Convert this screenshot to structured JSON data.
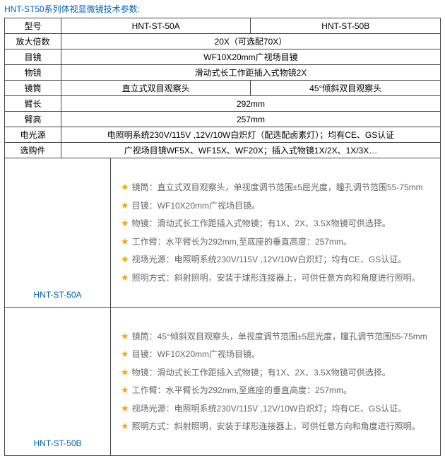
{
  "title": "HNT-ST50系列体视显微镜技术参数:",
  "colors": {
    "link": "#0060bf",
    "star": "#f7a600",
    "text_muted": "#666666",
    "border": "#444444",
    "bg": "#ffffff"
  },
  "spec": {
    "rows": [
      {
        "label": "型号",
        "cells": [
          "HNT-ST-50A",
          "HNT-ST-50B"
        ],
        "split": true
      },
      {
        "label": "放大倍数",
        "cells": [
          "20X（可选配70X）"
        ],
        "split": false
      },
      {
        "label": "目镜",
        "cells": [
          "WF10X20mm广视场目镜"
        ],
        "split": false
      },
      {
        "label": "物镜",
        "cells": [
          "滑动式长工作距插入式物镜2X"
        ],
        "split": false
      },
      {
        "label": "镜筒",
        "cells": [
          "直立式双目观察头",
          "45°倾斜双目观察头"
        ],
        "split": true
      },
      {
        "label": "臂长",
        "cells": [
          "292mm"
        ],
        "split": false
      },
      {
        "label": "臂高",
        "cells": [
          "257mm"
        ],
        "split": false
      },
      {
        "label": "电光源",
        "cells": [
          "电照明系统230V/115V ,12V/10W白炽灯（配选配卤素灯）；均有CE、GS认证"
        ],
        "split": false
      },
      {
        "label": "选购件",
        "cells": [
          "广视场目镜WF5X、WF15X、WF20X；插入式物镜1X/2X、1X/3X…"
        ],
        "split": false
      }
    ]
  },
  "models": [
    {
      "name": "HNT-ST-50A",
      "features": [
        {
          "label": "镜筒：",
          "text": "直立式双目观察头，单视度调节范围±5屈光度，瞳孔调节范围55-75mm"
        },
        {
          "label": "目镜：",
          "text": "WF10X20mm广视场目镜。"
        },
        {
          "label": "物镜：",
          "text": "滑动式长工作距插入式物镜；有1X、2X、3.5X物镜可供选择。"
        },
        {
          "label": "工作臂：",
          "text": "水平臂长为292mm,至底座的垂直高度：257mm。"
        },
        {
          "label": "视场光源：",
          "text": "电照明系统230V/115V ,12V/10W白炽灯；均有CE、GS认证。"
        },
        {
          "label": "照明方式：",
          "text": "斜射照明，安装于球形连接器上，可供任意方向和角度进行照明。"
        }
      ]
    },
    {
      "name": "HNT-ST-50B",
      "features": [
        {
          "label": "镜筒：",
          "text": "45°倾斜双目观察头，单视度调节范围±5屈光度，瞳孔调节范围55-75mm"
        },
        {
          "label": "目镜：",
          "text": "WF10X20mm广视场目镜。"
        },
        {
          "label": "物镜：",
          "text": "滑动式长工作距插入式物镜；有1X、2X、3.5X物镜可供选择。"
        },
        {
          "label": "工作臂：",
          "text": "水平臂长为292mm,至底座的垂直高度：257mm。"
        },
        {
          "label": "视场光源：",
          "text": "电照明系统230V/115V ,12V/10W白炽灯；均有CE、GS认证。"
        },
        {
          "label": "照明方式：",
          "text": "斜射照明，安装于球形连接器上，可供任意方向和角度进行照明。"
        }
      ]
    }
  ]
}
